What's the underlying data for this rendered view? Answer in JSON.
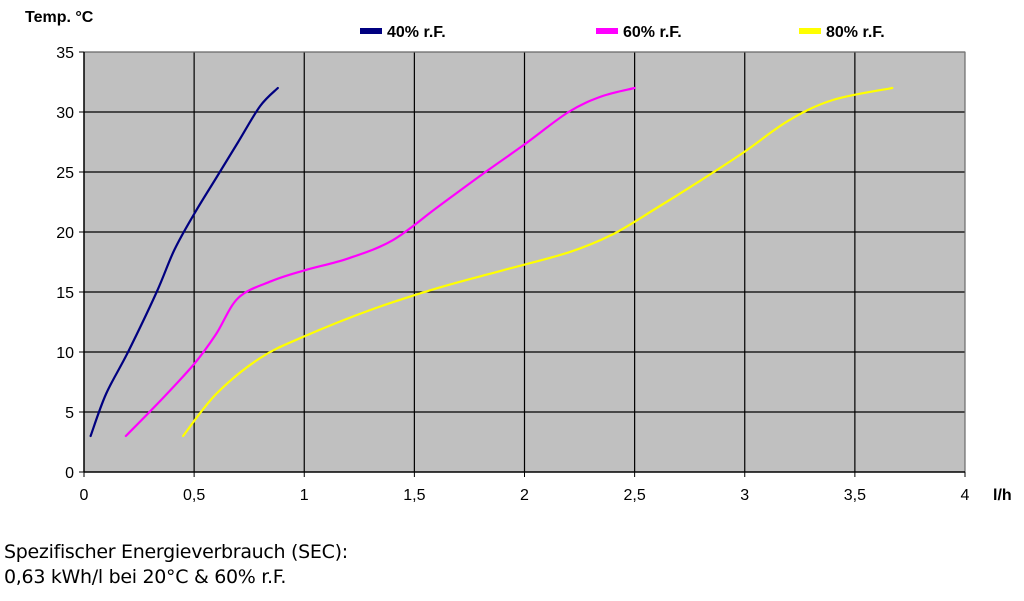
{
  "chart_data": {
    "type": "line",
    "title": "",
    "ylabel": "Temp. °C",
    "xlabel": "l/h",
    "xlim": [
      0,
      4
    ],
    "ylim": [
      0,
      35
    ],
    "x_ticks": [
      0,
      0.5,
      1,
      1.5,
      2,
      2.5,
      3,
      3.5,
      4
    ],
    "x_tick_labels": [
      "0",
      "0,5",
      "1",
      "1,5",
      "2",
      "2,5",
      "3",
      "3,5",
      "4"
    ],
    "y_ticks": [
      0,
      5,
      10,
      15,
      20,
      25,
      30,
      35
    ],
    "y_tick_labels": [
      "0",
      "5",
      "10",
      "15",
      "20",
      "25",
      "30",
      "35"
    ],
    "grid": true,
    "plot_background": "#c0c0c0",
    "legend_position": "top",
    "series": [
      {
        "name": "40% r.F.",
        "color": "#000080",
        "points": [
          [
            0.03,
            3
          ],
          [
            0.1,
            6.5
          ],
          [
            0.2,
            10
          ],
          [
            0.33,
            15
          ],
          [
            0.41,
            18.5
          ],
          [
            0.5,
            21.5
          ],
          [
            0.6,
            24.5
          ],
          [
            0.7,
            27.5
          ],
          [
            0.8,
            30.5
          ],
          [
            0.88,
            32
          ]
        ]
      },
      {
        "name": "60% r.F.",
        "color": "#ff00ff",
        "points": [
          [
            0.19,
            3
          ],
          [
            0.35,
            6
          ],
          [
            0.5,
            9
          ],
          [
            0.6,
            11.5
          ],
          [
            0.7,
            14.5
          ],
          [
            0.85,
            15.9
          ],
          [
            1.0,
            16.8
          ],
          [
            1.2,
            17.8
          ],
          [
            1.4,
            19.3
          ],
          [
            1.6,
            22
          ],
          [
            1.8,
            24.7
          ],
          [
            2.0,
            27.3
          ],
          [
            2.2,
            30
          ],
          [
            2.35,
            31.3
          ],
          [
            2.5,
            32
          ]
        ]
      },
      {
        "name": "80% r.F.",
        "color": "#ffff00",
        "points": [
          [
            0.45,
            3
          ],
          [
            0.6,
            6.5
          ],
          [
            0.8,
            9.5
          ],
          [
            1.0,
            11.3
          ],
          [
            1.3,
            13.5
          ],
          [
            1.6,
            15.3
          ],
          [
            1.9,
            16.8
          ],
          [
            2.2,
            18.3
          ],
          [
            2.4,
            19.8
          ],
          [
            2.6,
            22
          ],
          [
            2.8,
            24.3
          ],
          [
            3.0,
            26.7
          ],
          [
            3.2,
            29.3
          ],
          [
            3.4,
            31
          ],
          [
            3.67,
            32
          ]
        ]
      }
    ],
    "annotations": []
  },
  "footer": {
    "line1": "Spezifischer Energieverbrauch (SEC):",
    "line2": "0,63 kWh/l bei 20°C & 60% r.F."
  }
}
